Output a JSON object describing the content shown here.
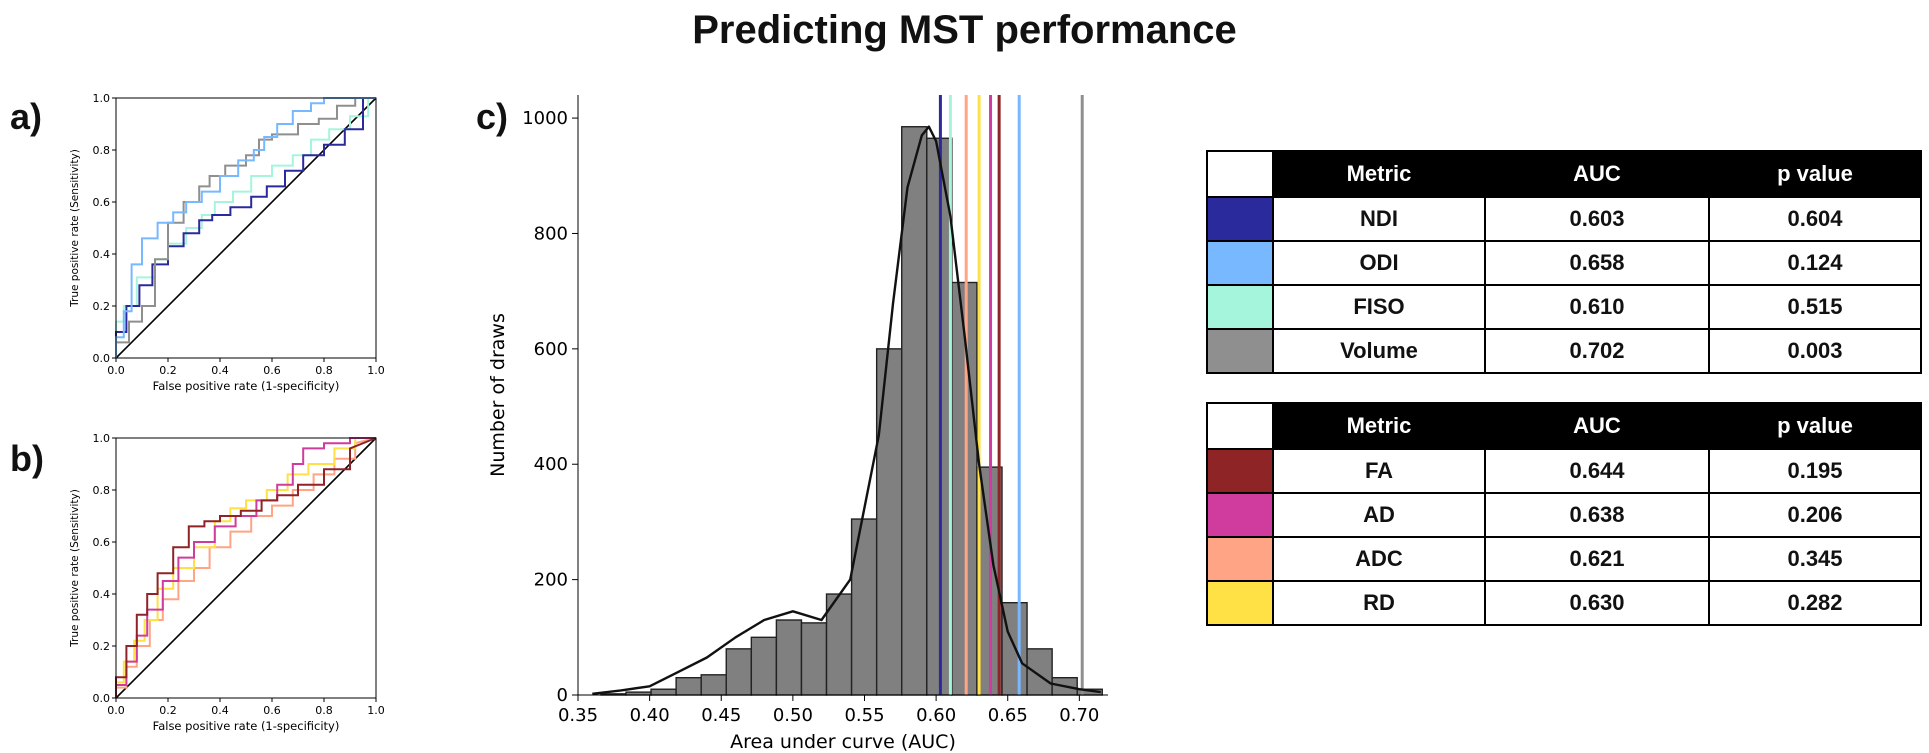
{
  "title": "Predicting MST performance",
  "panel_labels": [
    "a)",
    "b)",
    "c)"
  ],
  "colors": {
    "NDI": "#2a2a9c",
    "ODI": "#77b8ff",
    "FISO": "#a5f5dc",
    "Volume": "#8f8f8f",
    "FA": "#8e2426",
    "AD": "#d03c9d",
    "ADC": "#ffa485",
    "RD": "#ffe045"
  },
  "tables": [
    {
      "headers": [
        "Metric",
        "AUC",
        "p value"
      ],
      "rows": [
        {
          "metric": "NDI",
          "auc": "0.603",
          "p": "0.604",
          "color": "#2a2a9c"
        },
        {
          "metric": "ODI",
          "auc": "0.658",
          "p": "0.124",
          "color": "#77b8ff"
        },
        {
          "metric": "FISO",
          "auc": "0.610",
          "p": "0.515",
          "color": "#a5f5dc"
        },
        {
          "metric": "Volume",
          "auc": "0.702",
          "p": "0.003",
          "color": "#8f8f8f"
        }
      ]
    },
    {
      "headers": [
        "Metric",
        "AUC",
        "p value"
      ],
      "rows": [
        {
          "metric": "FA",
          "auc": "0.644",
          "p": "0.195",
          "color": "#8e2426"
        },
        {
          "metric": "AD",
          "auc": "0.638",
          "p": "0.206",
          "color": "#d03c9d"
        },
        {
          "metric": "ADC",
          "auc": "0.621",
          "p": "0.345",
          "color": "#ffa485"
        },
        {
          "metric": "RD",
          "auc": "0.630",
          "p": "0.282",
          "color": "#ffe045"
        }
      ]
    }
  ],
  "chart_data": [
    {
      "type": "line",
      "panel": "a)",
      "xlabel": "False positive rate (1-specificity)",
      "ylabel": "True positive rate (Sensitivity)",
      "xlim": [
        0,
        1
      ],
      "ylim": [
        0,
        1
      ],
      "xticks": [
        "0.0",
        "0.2",
        "0.4",
        "0.6",
        "0.8",
        "1.0"
      ],
      "yticks": [
        "0.0",
        "0.2",
        "0.4",
        "0.6",
        "0.8",
        "1.0"
      ],
      "diagonal": true,
      "series": [
        {
          "metric": "FISO",
          "color": "#a5f5dc",
          "x": [
            0,
            0,
            0.03,
            0.03,
            0.08,
            0.08,
            0.15,
            0.15,
            0.2,
            0.2,
            0.27,
            0.27,
            0.33,
            0.33,
            0.38,
            0.38,
            0.45,
            0.45,
            0.52,
            0.52,
            0.6,
            0.6,
            0.68,
            0.68,
            0.75,
            0.75,
            0.82,
            0.82,
            0.9,
            0.9,
            0.97,
            0.97,
            1
          ],
          "y": [
            0,
            0.14,
            0.14,
            0.2,
            0.2,
            0.31,
            0.31,
            0.38,
            0.38,
            0.44,
            0.44,
            0.5,
            0.5,
            0.55,
            0.55,
            0.6,
            0.6,
            0.64,
            0.64,
            0.7,
            0.7,
            0.74,
            0.74,
            0.78,
            0.78,
            0.84,
            0.84,
            0.88,
            0.88,
            0.93,
            0.93,
            1,
            1
          ]
        },
        {
          "metric": "NDI",
          "color": "#2a2a9c",
          "x": [
            0,
            0,
            0.04,
            0.04,
            0.09,
            0.09,
            0.14,
            0.14,
            0.2,
            0.2,
            0.26,
            0.26,
            0.32,
            0.32,
            0.37,
            0.37,
            0.44,
            0.44,
            0.52,
            0.52,
            0.58,
            0.58,
            0.65,
            0.65,
            0.72,
            0.72,
            0.8,
            0.8,
            0.88,
            0.88,
            0.95,
            0.95,
            1
          ],
          "y": [
            0,
            0.1,
            0.1,
            0.2,
            0.2,
            0.28,
            0.28,
            0.36,
            0.36,
            0.43,
            0.43,
            0.48,
            0.48,
            0.53,
            0.53,
            0.55,
            0.55,
            0.58,
            0.58,
            0.62,
            0.62,
            0.66,
            0.66,
            0.72,
            0.72,
            0.78,
            0.78,
            0.82,
            0.82,
            0.88,
            0.88,
            1,
            1
          ]
        },
        {
          "metric": "Volume",
          "color": "#8f8f8f",
          "x": [
            0,
            0,
            0.05,
            0.05,
            0.1,
            0.1,
            0.15,
            0.15,
            0.2,
            0.2,
            0.26,
            0.26,
            0.32,
            0.32,
            0.36,
            0.36,
            0.42,
            0.42,
            0.5,
            0.5,
            0.55,
            0.55,
            0.6,
            0.6,
            0.7,
            0.7,
            0.78,
            0.78,
            0.85,
            0.85,
            0.92,
            0.92,
            1
          ],
          "y": [
            0,
            0.06,
            0.06,
            0.14,
            0.14,
            0.2,
            0.2,
            0.38,
            0.38,
            0.52,
            0.52,
            0.6,
            0.6,
            0.66,
            0.66,
            0.7,
            0.7,
            0.74,
            0.74,
            0.78,
            0.78,
            0.84,
            0.84,
            0.86,
            0.86,
            0.9,
            0.9,
            0.92,
            0.92,
            0.97,
            0.97,
            1,
            1
          ]
        },
        {
          "metric": "ODI",
          "color": "#77b8ff",
          "x": [
            0,
            0,
            0.03,
            0.03,
            0.06,
            0.06,
            0.1,
            0.1,
            0.16,
            0.16,
            0.22,
            0.22,
            0.27,
            0.27,
            0.33,
            0.33,
            0.4,
            0.4,
            0.47,
            0.47,
            0.53,
            0.53,
            0.57,
            0.57,
            0.62,
            0.62,
            0.68,
            0.68,
            0.75,
            0.75,
            0.8,
            0.8,
            0.9,
            0.9,
            1
          ],
          "y": [
            0,
            0.08,
            0.08,
            0.18,
            0.18,
            0.36,
            0.36,
            0.46,
            0.46,
            0.52,
            0.52,
            0.56,
            0.56,
            0.6,
            0.6,
            0.64,
            0.64,
            0.7,
            0.7,
            0.76,
            0.76,
            0.8,
            0.8,
            0.85,
            0.85,
            0.9,
            0.9,
            0.95,
            0.95,
            0.98,
            0.98,
            1,
            1,
            1,
            1
          ]
        }
      ]
    },
    {
      "type": "line",
      "panel": "b)",
      "xlabel": "False positive rate (1-specificity)",
      "ylabel": "True positive rate (Sensitivity)",
      "xlim": [
        0,
        1
      ],
      "ylim": [
        0,
        1
      ],
      "xticks": [
        "0.0",
        "0.2",
        "0.4",
        "0.6",
        "0.8",
        "1.0"
      ],
      "yticks": [
        "0.0",
        "0.2",
        "0.4",
        "0.6",
        "0.8",
        "1.0"
      ],
      "diagonal": true,
      "series": [
        {
          "metric": "ADC",
          "color": "#ffa485",
          "x": [
            0,
            0,
            0.04,
            0.04,
            0.08,
            0.08,
            0.13,
            0.13,
            0.18,
            0.18,
            0.24,
            0.24,
            0.3,
            0.3,
            0.36,
            0.36,
            0.44,
            0.44,
            0.52,
            0.52,
            0.6,
            0.6,
            0.68,
            0.68,
            0.76,
            0.76,
            0.84,
            0.84,
            0.92,
            0.92,
            1
          ],
          "y": [
            0,
            0.04,
            0.04,
            0.12,
            0.12,
            0.2,
            0.2,
            0.3,
            0.3,
            0.38,
            0.38,
            0.45,
            0.45,
            0.5,
            0.5,
            0.58,
            0.58,
            0.64,
            0.64,
            0.7,
            0.7,
            0.74,
            0.74,
            0.8,
            0.8,
            0.86,
            0.86,
            0.92,
            0.92,
            0.98,
            1
          ]
        },
        {
          "metric": "RD",
          "color": "#ffe045",
          "x": [
            0,
            0,
            0.03,
            0.03,
            0.07,
            0.07,
            0.11,
            0.11,
            0.16,
            0.16,
            0.22,
            0.22,
            0.3,
            0.3,
            0.38,
            0.38,
            0.44,
            0.44,
            0.5,
            0.5,
            0.58,
            0.58,
            0.66,
            0.66,
            0.74,
            0.74,
            0.84,
            0.84,
            0.92,
            0.92,
            1
          ],
          "y": [
            0,
            0.06,
            0.06,
            0.14,
            0.14,
            0.22,
            0.22,
            0.3,
            0.3,
            0.42,
            0.42,
            0.5,
            0.5,
            0.58,
            0.58,
            0.68,
            0.68,
            0.73,
            0.73,
            0.76,
            0.76,
            0.8,
            0.8,
            0.86,
            0.86,
            0.9,
            0.9,
            0.96,
            0.96,
            1,
            1
          ]
        },
        {
          "metric": "AD",
          "color": "#d03c9d",
          "x": [
            0,
            0,
            0.04,
            0.04,
            0.08,
            0.08,
            0.12,
            0.12,
            0.18,
            0.18,
            0.24,
            0.24,
            0.3,
            0.3,
            0.38,
            0.38,
            0.46,
            0.46,
            0.54,
            0.54,
            0.62,
            0.62,
            0.68,
            0.68,
            0.72,
            0.72,
            0.8,
            0.8,
            0.9,
            0.9,
            1
          ],
          "y": [
            0,
            0.05,
            0.05,
            0.14,
            0.14,
            0.24,
            0.24,
            0.34,
            0.34,
            0.45,
            0.45,
            0.54,
            0.54,
            0.6,
            0.6,
            0.66,
            0.66,
            0.7,
            0.7,
            0.76,
            0.76,
            0.82,
            0.82,
            0.9,
            0.9,
            0.96,
            0.96,
            0.98,
            0.98,
            1,
            1
          ]
        },
        {
          "metric": "FA",
          "color": "#8e2426",
          "x": [
            0,
            0,
            0.04,
            0.04,
            0.08,
            0.08,
            0.12,
            0.12,
            0.16,
            0.16,
            0.22,
            0.22,
            0.28,
            0.28,
            0.34,
            0.34,
            0.4,
            0.4,
            0.48,
            0.48,
            0.56,
            0.56,
            0.62,
            0.62,
            0.7,
            0.7,
            0.8,
            0.8,
            0.9,
            0.9,
            1
          ],
          "y": [
            0,
            0.08,
            0.08,
            0.2,
            0.2,
            0.32,
            0.32,
            0.4,
            0.4,
            0.48,
            0.48,
            0.58,
            0.58,
            0.66,
            0.66,
            0.68,
            0.68,
            0.7,
            0.7,
            0.72,
            0.72,
            0.76,
            0.76,
            0.78,
            0.78,
            0.82,
            0.82,
            0.88,
            0.88,
            0.96,
            1
          ]
        }
      ]
    },
    {
      "type": "bar",
      "panel": "c)",
      "xlabel": "Area under curve (AUC)",
      "ylabel": "Number of draws",
      "xlim": [
        0.35,
        0.72
      ],
      "ylim": [
        0,
        1040
      ],
      "xticks": [
        "0.35",
        "0.40",
        "0.45",
        "0.50",
        "0.55",
        "0.60",
        "0.65",
        "0.70"
      ],
      "yticks": [
        "0",
        "200",
        "400",
        "600",
        "800",
        "1000"
      ],
      "bin_width": 0.0175,
      "bin_starts": [
        0.366,
        0.3835,
        0.401,
        0.4185,
        0.436,
        0.4535,
        0.471,
        0.4885,
        0.506,
        0.5235,
        0.541,
        0.5585,
        0.576,
        0.5935,
        0.611,
        0.6285,
        0.646,
        0.6635,
        0.681,
        0.6985
      ],
      "counts": [
        2,
        5,
        10,
        30,
        35,
        80,
        100,
        130,
        125,
        175,
        305,
        600,
        985,
        965,
        715,
        395,
        160,
        80,
        30,
        10
      ],
      "kde": {
        "x": [
          0.36,
          0.38,
          0.4,
          0.42,
          0.44,
          0.46,
          0.48,
          0.5,
          0.52,
          0.54,
          0.56,
          0.57,
          0.58,
          0.59,
          0.595,
          0.6,
          0.61,
          0.62,
          0.63,
          0.64,
          0.65,
          0.66,
          0.68,
          0.7,
          0.715
        ],
        "y": [
          2,
          8,
          15,
          40,
          65,
          100,
          130,
          145,
          130,
          200,
          450,
          680,
          880,
          970,
          985,
          960,
          830,
          620,
          400,
          225,
          110,
          55,
          20,
          10,
          5
        ]
      },
      "vlines": [
        {
          "metric": "NDI",
          "x": 0.603,
          "color": "#2a2a9c"
        },
        {
          "metric": "ODI",
          "x": 0.658,
          "color": "#77b8ff"
        },
        {
          "metric": "FISO",
          "x": 0.61,
          "color": "#a5f5dc"
        },
        {
          "metric": "Volume",
          "x": 0.702,
          "color": "#8f8f8f"
        },
        {
          "metric": "FA",
          "x": 0.644,
          "color": "#8e2426"
        },
        {
          "metric": "AD",
          "x": 0.638,
          "color": "#d03c9d"
        },
        {
          "metric": "ADC",
          "x": 0.621,
          "color": "#ffa485"
        },
        {
          "metric": "RD",
          "x": 0.63,
          "color": "#ffe045"
        }
      ]
    }
  ]
}
